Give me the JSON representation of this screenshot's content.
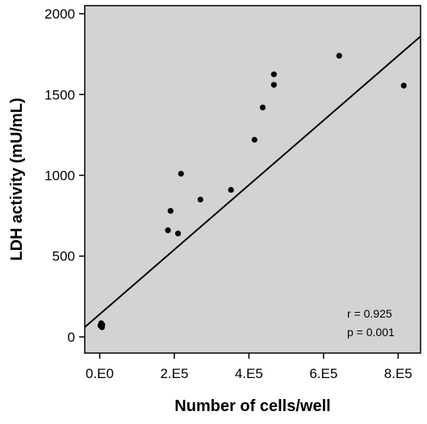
{
  "chart_data": {
    "type": "scatter",
    "title": "",
    "xlabel": "Number of cells/well",
    "ylabel": "LDH activity (mU/mL)",
    "xlim": [
      -40000,
      860000
    ],
    "ylim": [
      -100,
      2050
    ],
    "x_ticks": [
      {
        "value": 0,
        "label": "0.E0"
      },
      {
        "value": 200000,
        "label": "2.E5"
      },
      {
        "value": 400000,
        "label": "4.E5"
      },
      {
        "value": 600000,
        "label": "6.E5"
      },
      {
        "value": 800000,
        "label": "8.E5"
      }
    ],
    "y_ticks": [
      {
        "value": 0,
        "label": "0"
      },
      {
        "value": 500,
        "label": "500"
      },
      {
        "value": 1000,
        "label": "1000"
      },
      {
        "value": 1500,
        "label": "1500"
      },
      {
        "value": 2000,
        "label": "2000"
      }
    ],
    "grid": false,
    "background_color": "#d3d3d3",
    "point_color": "#000000",
    "series": [
      {
        "points": [
          {
            "x": 2000,
            "y": 70
          },
          {
            "x": 4000,
            "y": 85
          },
          {
            "x": 6000,
            "y": 60
          },
          {
            "x": 7000,
            "y": 75
          },
          {
            "x": 183000,
            "y": 660
          },
          {
            "x": 190000,
            "y": 780
          },
          {
            "x": 210000,
            "y": 640
          },
          {
            "x": 218000,
            "y": 1010
          },
          {
            "x": 270000,
            "y": 850
          },
          {
            "x": 352000,
            "y": 910
          },
          {
            "x": 415000,
            "y": 1220
          },
          {
            "x": 437000,
            "y": 1420
          },
          {
            "x": 467000,
            "y": 1560
          },
          {
            "x": 467000,
            "y": 1625
          },
          {
            "x": 642000,
            "y": 1740
          },
          {
            "x": 815000,
            "y": 1555
          }
        ]
      }
    ],
    "regression_line": {
      "intercept": 140,
      "slope": 0.002
    },
    "annotations": [
      "r = 0.925",
      "p = 0.001"
    ]
  }
}
